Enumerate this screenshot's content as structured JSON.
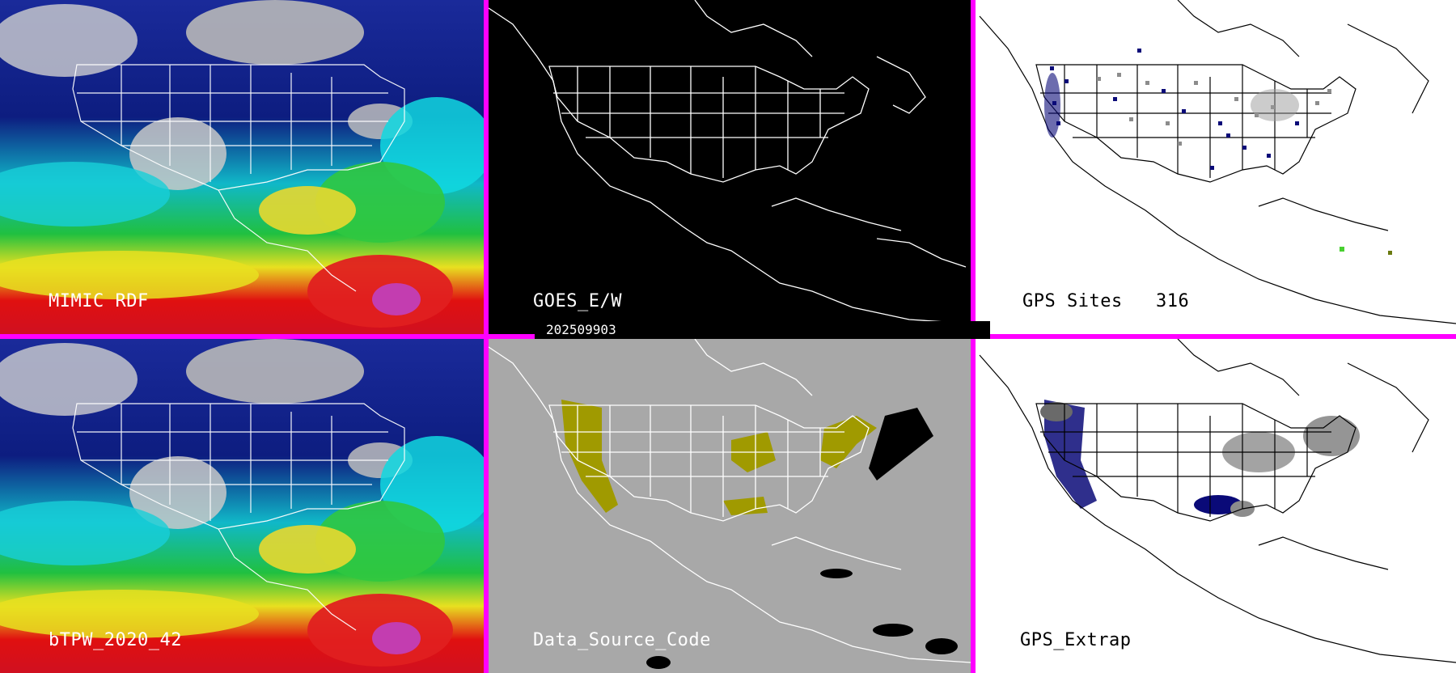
{
  "panels": {
    "mimic": {
      "label": "MIMIC RDF"
    },
    "goes": {
      "label": "GOES_E/W"
    },
    "gps_sites": {
      "label": "GPS Sites",
      "count": "316"
    },
    "btpw": {
      "label": "bTPW_2020_42"
    },
    "data_source": {
      "label": "Data_Source_Code"
    },
    "gps_extrap": {
      "label": "GPS_Extrap"
    }
  },
  "date_stamp": "202509903",
  "colors": {
    "separator": "#ff00ff",
    "goes_background": "#000000",
    "data_source_background": "#a8a8a8",
    "data_source_fill": "#a09a00",
    "gps_background": "#ffffff",
    "gps_site_dark": "#0a0a78",
    "gps_site_gray": "#8c8c8c"
  }
}
